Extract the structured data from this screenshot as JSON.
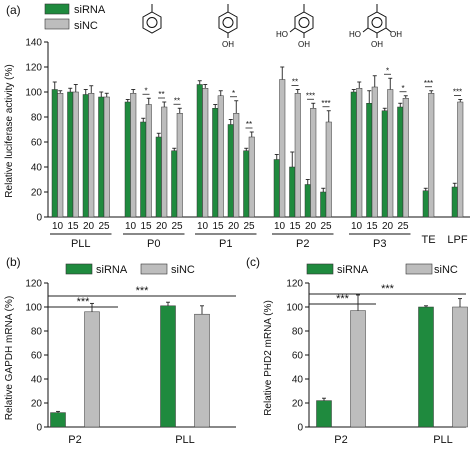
{
  "colors": {
    "sirna": "#1f8a3e",
    "sinc": "#bdbdbd",
    "edge": "#333333"
  },
  "panels": {
    "a": {
      "letter": "(a)"
    },
    "b": {
      "letter": "(b)"
    },
    "c": {
      "letter": "(c)"
    }
  },
  "chart_data": [
    {
      "id": "a",
      "type": "bar",
      "ylabel": "Relative luciferase activity (%)",
      "ylim": [
        0,
        140
      ],
      "yticks": [
        0,
        20,
        40,
        60,
        80,
        100,
        120,
        140
      ],
      "legend": {
        "placement": "top-left",
        "entries": [
          "siRNA",
          "siNC"
        ]
      },
      "groups": [
        {
          "label": "PLL",
          "ticks": [
            "10",
            "15",
            "20",
            "25"
          ],
          "sirna": [
            102,
            100,
            98,
            96
          ],
          "sirna_err": [
            6,
            3,
            4,
            4
          ],
          "sinc": [
            99,
            100,
            99,
            96
          ],
          "sinc_err": [
            2,
            6,
            6,
            3
          ],
          "stars": [
            "",
            "",
            "",
            ""
          ]
        },
        {
          "label": "P0",
          "ticks": [
            "10",
            "15",
            "20",
            "25"
          ],
          "sirna": [
            92,
            76,
            64,
            53
          ],
          "sirna_err": [
            2,
            3,
            3,
            2
          ],
          "sinc": [
            99,
            90,
            88,
            83
          ],
          "sinc_err": [
            3,
            5,
            4,
            4
          ],
          "stars": [
            "",
            "*",
            "**",
            "**"
          ]
        },
        {
          "label": "P1",
          "ticks": [
            "10",
            "15",
            "20",
            "25"
          ],
          "sirna": [
            106,
            87,
            74,
            53
          ],
          "sirna_err": [
            3,
            3,
            4,
            2
          ],
          "sinc": [
            103,
            97,
            83,
            64
          ],
          "sinc_err": [
            3,
            4,
            10,
            4
          ],
          "stars": [
            "",
            "",
            "*",
            "**"
          ]
        },
        {
          "label": "P2",
          "ticks": [
            "10",
            "15",
            "20",
            "25"
          ],
          "sirna": [
            46,
            40,
            26,
            20
          ],
          "sirna_err": [
            4,
            12,
            4,
            3
          ],
          "sinc": [
            110,
            99,
            87,
            76
          ],
          "sinc_err": [
            10,
            3,
            4,
            9
          ],
          "stars": [
            "",
            "**",
            "***",
            "***"
          ]
        },
        {
          "label": "P3",
          "ticks": [
            "10",
            "15",
            "20",
            "25"
          ],
          "sirna": [
            100,
            91,
            85,
            88
          ],
          "sirna_err": [
            2,
            10,
            2,
            3
          ],
          "sinc": [
            103,
            104,
            102,
            95
          ],
          "sinc_err": [
            5,
            9,
            9,
            2
          ],
          "stars": [
            "",
            "",
            "*",
            "*"
          ]
        },
        {
          "label": "TE",
          "ticks": [],
          "sirna": [
            21
          ],
          "sirna_err": [
            2
          ],
          "sinc": [
            99
          ],
          "sinc_err": [
            2
          ],
          "stars": [
            "***"
          ]
        },
        {
          "label": "LPF",
          "ticks": [],
          "sirna": [
            24
          ],
          "sirna_err": [
            3
          ],
          "sinc": [
            92
          ],
          "sinc_err": [
            2
          ],
          "stars": [
            "***"
          ]
        }
      ]
    },
    {
      "id": "b",
      "type": "bar",
      "ylabel": "Relative GAPDH mRNA  (%)",
      "ylim": [
        0,
        120
      ],
      "yticks": [
        0,
        20,
        40,
        60,
        80,
        100,
        120
      ],
      "legend": {
        "placement": "top",
        "entries": [
          "siRNA",
          "siNC"
        ]
      },
      "categories": [
        "P2",
        "PLL"
      ],
      "sirna": [
        12,
        101
      ],
      "sirna_err": [
        1,
        3
      ],
      "sinc": [
        96,
        94
      ],
      "sinc_err": [
        7,
        7
      ],
      "annotations": [
        "***",
        "***"
      ]
    },
    {
      "id": "c",
      "type": "bar",
      "ylabel": "Relative PHD2 mRNA  (%)",
      "ylim": [
        0,
        120
      ],
      "yticks": [
        0,
        20,
        40,
        60,
        80,
        100,
        120
      ],
      "legend": {
        "placement": "top",
        "entries": [
          "siRNA",
          "siNC"
        ]
      },
      "categories": [
        "P2",
        "PLL"
      ],
      "sirna": [
        22,
        100
      ],
      "sirna_err": [
        2,
        1
      ],
      "sinc": [
        97,
        100
      ],
      "sinc_err": [
        13,
        7
      ],
      "annotations": [
        "***",
        "***"
      ]
    }
  ]
}
